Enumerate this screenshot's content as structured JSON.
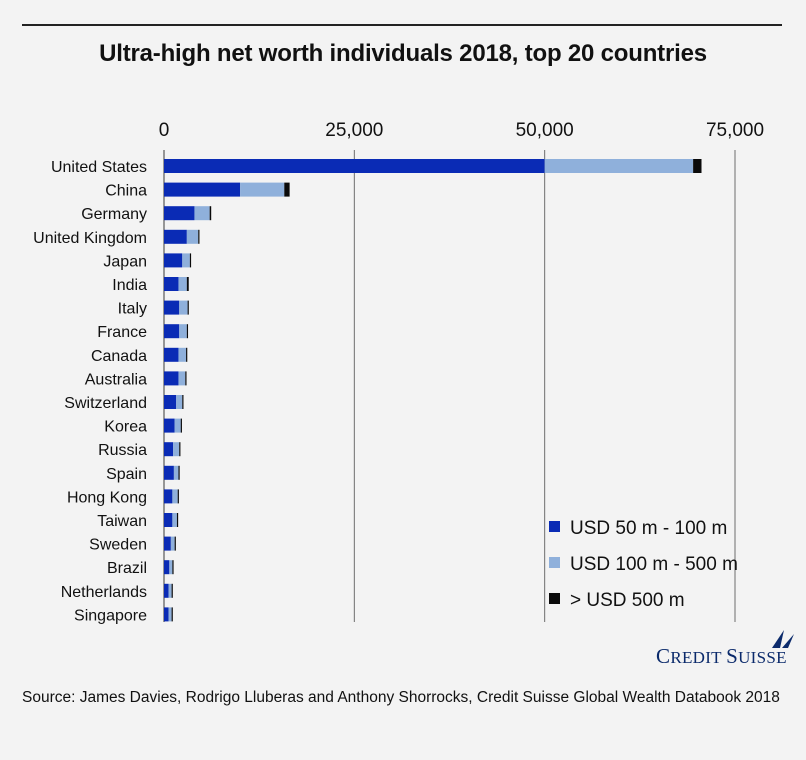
{
  "title": "Ultra-high net worth individuals 2018, top 20 countries",
  "source": "Source: James Davies, Rodrigo Lluberas and Anthony Shorrocks, Credit Suisse Global Wealth Databook 2018",
  "logo": {
    "text_first": "Credit",
    "text_second": "Suisse"
  },
  "colors": {
    "dark_blue": "#0a2bb5",
    "light_blue": "#8fb0db",
    "black": "#0a0a0a",
    "grid": "#6e6e6e"
  },
  "chart_data": {
    "type": "bar",
    "orientation": "horizontal",
    "stacked": true,
    "title": "Ultra-high net worth individuals 2018, top 20 countries",
    "xlim": [
      0,
      75000
    ],
    "x_ticks": [
      0,
      25000,
      50000,
      75000
    ],
    "x_tick_labels": [
      "0",
      "25,000",
      "50,000",
      "75,000"
    ],
    "axis_position": "top",
    "grid": true,
    "legend_position": "bottom-right",
    "categories": [
      "United States",
      "China",
      "Germany",
      "United Kingdom",
      "Japan",
      "India",
      "Italy",
      "France",
      "Canada",
      "Australia",
      "Switzerland",
      "Korea",
      "Russia",
      "Spain",
      "Hong Kong",
      "Taiwan",
      "Sweden",
      "Brazil",
      "Netherlands",
      "Singapore"
    ],
    "series": [
      {
        "name": "USD 50 m - 100 m",
        "color": "#0a2bb5",
        "values": [
          50000,
          10000,
          4000,
          3000,
          2400,
          1900,
          2000,
          2000,
          1900,
          1900,
          1600,
          1400,
          1200,
          1300,
          1100,
          1100,
          900,
          700,
          600,
          600
        ]
      },
      {
        "name": "USD 100 m - 500 m",
        "color": "#8fb0db",
        "values": [
          19500,
          5800,
          2000,
          1500,
          1000,
          1100,
          1100,
          1000,
          1000,
          900,
          800,
          800,
          800,
          600,
          700,
          600,
          500,
          400,
          400,
          400
        ]
      },
      {
        "name": "> USD 500 m",
        "color": "#0a0a0a",
        "values": [
          1100,
          700,
          200,
          150,
          100,
          250,
          100,
          80,
          80,
          80,
          100,
          80,
          150,
          80,
          100,
          60,
          80,
          50,
          40,
          40
        ]
      }
    ]
  }
}
